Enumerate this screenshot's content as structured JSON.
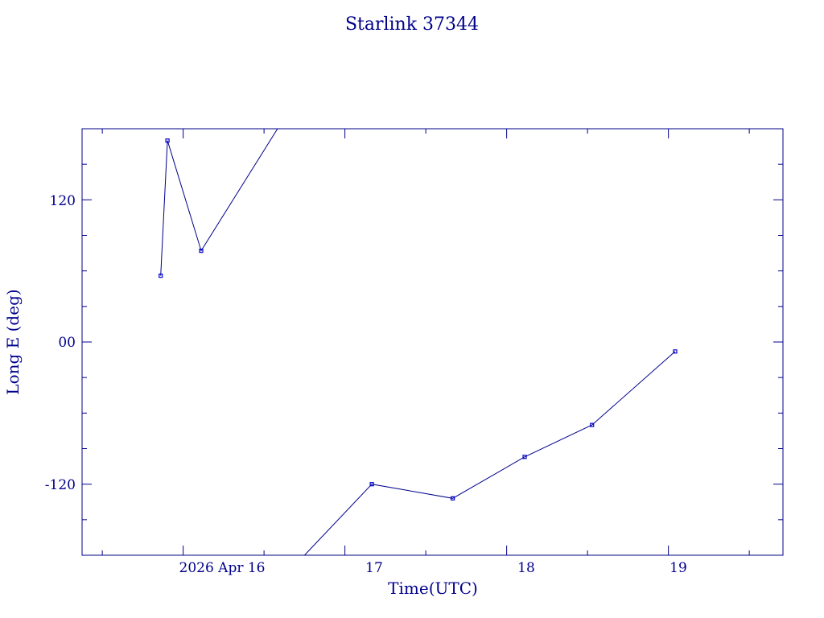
{
  "chart_data": {
    "type": "line",
    "title": "Starlink 37344",
    "xlabel": "Time(UTC)",
    "ylabel": "Long E (deg)",
    "x_tick_labels": [
      "2026 Apr 16",
      "17",
      "18",
      "19"
    ],
    "y_tick_labels": [
      "120",
      "00",
      "-120"
    ],
    "xlim": [
      "2026-04-15 09:00",
      "2026-04-19 17:00"
    ],
    "ylim": [
      -180,
      180
    ],
    "grid": false,
    "series": [
      {
        "points": [
          {
            "t": "2026-04-15 20:40",
            "lon": 56
          },
          {
            "t": "2026-04-15 21:40",
            "lon": 170
          },
          {
            "t": "2026-04-16 02:40",
            "lon": 77
          },
          {
            "t": "2026-04-16 14:00",
            "lon": 180
          },
          {
            "t": "2026-04-16 18:00",
            "lon": -180
          },
          {
            "t": "2026-04-17 04:00",
            "lon": -120
          },
          {
            "t": "2026-04-17 16:00",
            "lon": -132
          },
          {
            "t": "2026-04-18 02:40",
            "lon": -97
          },
          {
            "t": "2026-04-18 12:40",
            "lon": -70
          },
          {
            "t": "2026-04-19 01:00",
            "lon": -8
          }
        ],
        "markers": [
          {
            "t": "2026-04-15 20:40",
            "lon": 56
          },
          {
            "t": "2026-04-15 21:40",
            "lon": 170
          },
          {
            "t": "2026-04-16 02:40",
            "lon": 77
          },
          {
            "t": "2026-04-17 04:00",
            "lon": -120
          },
          {
            "t": "2026-04-17 16:00",
            "lon": -132
          },
          {
            "t": "2026-04-18 02:40",
            "lon": -97
          },
          {
            "t": "2026-04-18 12:40",
            "lon": -70
          },
          {
            "t": "2026-04-19 01:00",
            "lon": -8
          }
        ]
      }
    ]
  }
}
